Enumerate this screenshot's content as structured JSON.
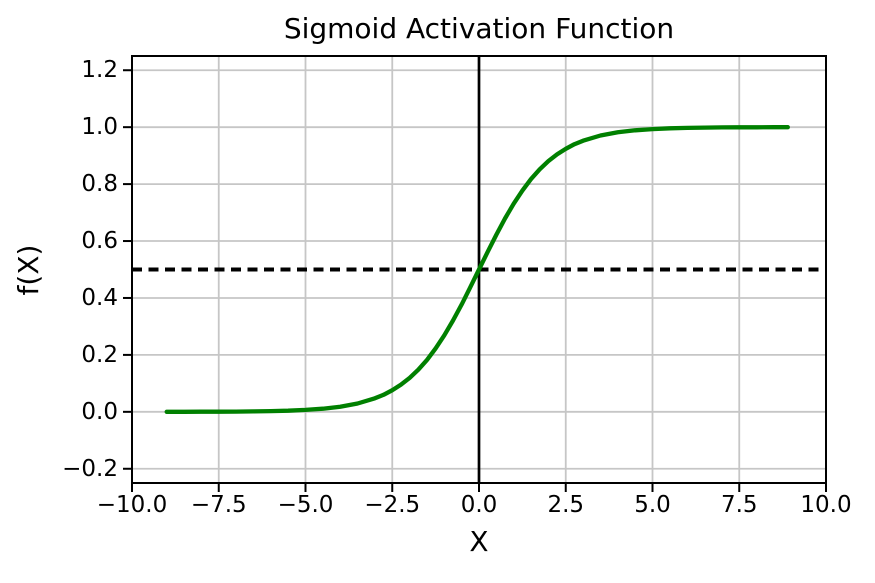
{
  "figure": {
    "background": "#ffffff",
    "text_color": "#000000"
  },
  "chart_data": {
    "type": "line",
    "title": "Sigmoid Activation Function",
    "xlabel": "X",
    "ylabel": "f(X)",
    "xlim": [
      -10,
      10
    ],
    "ylim": [
      -0.25,
      1.25
    ],
    "grid": true,
    "grid_color": "#c6c6c6",
    "axis_color": "#000000",
    "x_ticks": [
      -10.0,
      -7.5,
      -5.0,
      -2.5,
      0.0,
      2.5,
      5.0,
      7.5,
      10.0
    ],
    "x_tick_labels": [
      "−10.0",
      "−7.5",
      "−5.0",
      "−2.5",
      "0.0",
      "2.5",
      "5.0",
      "7.5",
      "10.0"
    ],
    "y_ticks": [
      -0.2,
      0.0,
      0.2,
      0.4,
      0.6,
      0.8,
      1.0,
      1.2
    ],
    "y_tick_labels": [
      "−0.2",
      "0.0",
      "0.2",
      "0.4",
      "0.6",
      "0.8",
      "1.0",
      "1.2"
    ],
    "series": [
      {
        "name": "sigmoid",
        "color": "#008000",
        "line_width": 4.3,
        "x": [
          -9,
          -8.5,
          -8,
          -7.5,
          -7,
          -6.5,
          -6,
          -5.5,
          -5,
          -4.5,
          -4,
          -3.5,
          -3,
          -2.75,
          -2.5,
          -2.25,
          -2,
          -1.75,
          -1.5,
          -1.25,
          -1,
          -0.75,
          -0.5,
          -0.25,
          0,
          0.25,
          0.5,
          0.75,
          1,
          1.25,
          1.5,
          1.75,
          2,
          2.25,
          2.5,
          2.75,
          3,
          3.5,
          4,
          4.5,
          5,
          5.5,
          6,
          6.5,
          7,
          7.5,
          8,
          8.5,
          8.9
        ],
        "y": [
          0.00012,
          0.0002,
          0.00034,
          0.00055,
          0.00091,
          0.0015,
          0.00247,
          0.00407,
          0.00669,
          0.01099,
          0.01799,
          0.02931,
          0.04743,
          0.06001,
          0.07586,
          0.09535,
          0.1192,
          0.14805,
          0.18243,
          0.2227,
          0.26894,
          0.32082,
          0.37754,
          0.43782,
          0.5,
          0.56218,
          0.62246,
          0.67918,
          0.73106,
          0.7773,
          0.81757,
          0.85195,
          0.8808,
          0.90465,
          0.92414,
          0.93999,
          0.95257,
          0.97069,
          0.98201,
          0.98901,
          0.99331,
          0.99593,
          0.99753,
          0.9985,
          0.99909,
          0.99945,
          0.99966,
          0.9998,
          0.99986
        ]
      }
    ],
    "reference_lines": {
      "vline": {
        "x": 0.0,
        "color": "#000000",
        "style": "solid",
        "width": 2.7
      },
      "hline": {
        "y": 0.5,
        "color": "#000000",
        "style": "dashed",
        "dash": "10 6.5",
        "width": 4
      }
    }
  }
}
